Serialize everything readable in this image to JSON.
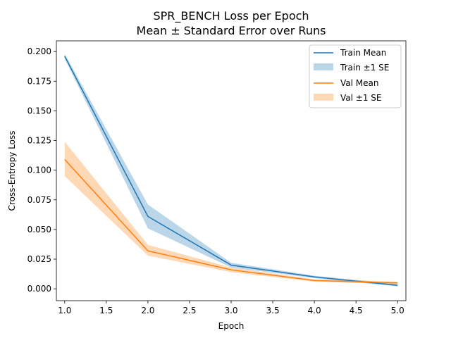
{
  "chart_data": {
    "type": "line",
    "title": "SPR_BENCH Loss per Epoch",
    "subtitle": "Mean ± Standard Error over Runs",
    "xlabel": "Epoch",
    "ylabel": "Cross-Entropy Loss",
    "xlim": [
      0.9,
      5.1
    ],
    "ylim": [
      -0.01,
      0.209
    ],
    "xticks": [
      1.0,
      1.5,
      2.0,
      2.5,
      3.0,
      3.5,
      4.0,
      4.5,
      5.0
    ],
    "yticks": [
      0.0,
      0.025,
      0.05,
      0.075,
      0.1,
      0.125,
      0.15,
      0.175,
      0.2
    ],
    "x": [
      1,
      2,
      3,
      4,
      5
    ],
    "grid": false,
    "legend_position": "top-right",
    "series": [
      {
        "name": "Train Mean",
        "band_name": "Train ±1 SE",
        "color": "#1f77b4",
        "values": [
          0.196,
          0.061,
          0.02,
          0.01,
          0.003
        ],
        "lower": [
          0.194,
          0.051,
          0.018,
          0.009,
          0.002
        ],
        "upper": [
          0.198,
          0.071,
          0.022,
          0.011,
          0.004
        ]
      },
      {
        "name": "Val Mean",
        "band_name": "Val ±1 SE",
        "color": "#ff7f0e",
        "values": [
          0.109,
          0.032,
          0.016,
          0.007,
          0.005
        ],
        "lower": [
          0.095,
          0.028,
          0.014,
          0.006,
          0.004
        ],
        "upper": [
          0.124,
          0.037,
          0.018,
          0.008,
          0.006
        ]
      }
    ]
  }
}
